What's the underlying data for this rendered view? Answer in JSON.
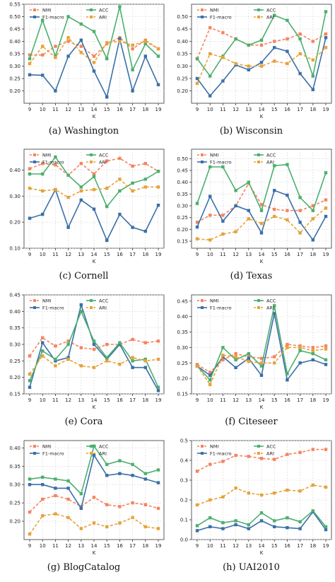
{
  "legend_labels": {
    "nmi": "NMI",
    "f1": "F1-macro",
    "acc": "ACC",
    "ari": "ARI"
  },
  "series_colors": {
    "nmi": "#f4845f",
    "f1": "#3a6fa8",
    "acc": "#4caf6e",
    "ari": "#e5a33a"
  },
  "chart_data": [
    {
      "type": "line",
      "caption": "(a)  Washington",
      "xlabel": "K",
      "ylabel": "",
      "x": [
        9,
        10,
        11,
        12,
        13,
        14,
        15,
        16,
        17,
        18,
        19
      ],
      "ylim": [
        0.15,
        0.55
      ],
      "yticks": [
        0.2,
        0.25,
        0.3,
        0.35,
        0.4,
        0.45,
        0.5,
        0.55
      ],
      "grid": true,
      "legend": "top",
      "series": [
        {
          "name": "NMI",
          "values": [
            0.345,
            0.345,
            0.38,
            0.4,
            0.38,
            0.34,
            0.39,
            0.415,
            0.37,
            0.405,
            0.37
          ]
        },
        {
          "name": "F1-macro",
          "values": [
            0.265,
            0.263,
            0.2,
            0.34,
            0.405,
            0.28,
            0.175,
            0.41,
            0.2,
            0.34,
            0.225
          ]
        },
        {
          "name": "ACC",
          "values": [
            0.33,
            0.485,
            0.34,
            0.5,
            0.47,
            0.44,
            0.33,
            0.54,
            0.285,
            0.39,
            0.34
          ]
        },
        {
          "name": "ARI",
          "values": [
            0.31,
            0.38,
            0.335,
            0.415,
            0.355,
            0.315,
            0.395,
            0.4,
            0.385,
            0.4,
            0.37
          ]
        }
      ]
    },
    {
      "type": "line",
      "caption": "(b)  Wisconsin",
      "xlabel": "K",
      "ylabel": "",
      "x": [
        9,
        10,
        11,
        12,
        13,
        14,
        15,
        16,
        17,
        18,
        19
      ],
      "ylim": [
        0.15,
        0.55
      ],
      "yticks": [
        0.2,
        0.25,
        0.3,
        0.35,
        0.4,
        0.45,
        0.5
      ],
      "grid": true,
      "legend": "top",
      "series": [
        {
          "name": "NMI",
          "values": [
            0.33,
            0.455,
            0.435,
            0.41,
            0.385,
            0.385,
            0.4,
            0.41,
            0.43,
            0.4,
            0.43
          ]
        },
        {
          "name": "F1-macro",
          "values": [
            0.25,
            0.18,
            0.24,
            0.305,
            0.285,
            0.315,
            0.375,
            0.36,
            0.27,
            0.205,
            0.415
          ]
        },
        {
          "name": "ACC",
          "values": [
            0.33,
            0.26,
            0.34,
            0.41,
            0.385,
            0.405,
            0.505,
            0.485,
            0.41,
            0.26,
            0.52
          ]
        },
        {
          "name": "ARI",
          "values": [
            0.23,
            0.35,
            0.335,
            0.31,
            0.3,
            0.3,
            0.32,
            0.31,
            0.35,
            0.325,
            0.375
          ]
        }
      ]
    },
    {
      "type": "line",
      "caption": "(c)  Cornell",
      "xlabel": "K",
      "ylabel": "",
      "x": [
        9,
        10,
        11,
        12,
        13,
        14,
        15,
        16,
        17,
        18,
        19
      ],
      "ylim": [
        0.1,
        0.48
      ],
      "yticks": [
        0.1,
        0.2,
        0.3,
        0.4
      ],
      "grid": true,
      "legend": "top",
      "series": [
        {
          "name": "NMI",
          "values": [
            0.405,
            0.425,
            0.42,
            0.38,
            0.425,
            0.385,
            0.435,
            0.445,
            0.415,
            0.425,
            0.395
          ]
        },
        {
          "name": "F1-macro",
          "values": [
            0.215,
            0.23,
            0.325,
            0.18,
            0.285,
            0.25,
            0.13,
            0.23,
            0.18,
            0.165,
            0.265
          ]
        },
        {
          "name": "ACC",
          "values": [
            0.385,
            0.385,
            0.45,
            0.38,
            0.335,
            0.375,
            0.26,
            0.32,
            0.35,
            0.365,
            0.395
          ]
        },
        {
          "name": "ARI",
          "values": [
            0.33,
            0.32,
            0.325,
            0.295,
            0.32,
            0.325,
            0.33,
            0.365,
            0.32,
            0.335,
            0.335
          ]
        }
      ]
    },
    {
      "type": "line",
      "caption": "(d)  Texas",
      "xlabel": "K",
      "ylabel": "",
      "x": [
        9,
        10,
        11,
        12,
        13,
        14,
        15,
        16,
        17,
        18,
        19
      ],
      "ylim": [
        0.12,
        0.54
      ],
      "yticks": [
        0.15,
        0.2,
        0.25,
        0.3,
        0.35,
        0.4,
        0.45,
        0.5
      ],
      "grid": true,
      "legend": "top",
      "series": [
        {
          "name": "NMI",
          "values": [
            0.23,
            0.26,
            0.26,
            0.3,
            0.395,
            0.305,
            0.285,
            0.28,
            0.28,
            0.3,
            0.325
          ]
        },
        {
          "name": "F1-macro",
          "values": [
            0.21,
            0.34,
            0.235,
            0.3,
            0.28,
            0.185,
            0.365,
            0.345,
            0.23,
            0.155,
            0.255
          ]
        },
        {
          "name": "ACC",
          "values": [
            0.31,
            0.465,
            0.465,
            0.365,
            0.4,
            0.28,
            0.47,
            0.475,
            0.335,
            0.28,
            0.44
          ]
        },
        {
          "name": "ARI",
          "values": [
            0.16,
            0.155,
            0.18,
            0.19,
            0.245,
            0.225,
            0.255,
            0.24,
            0.185,
            0.245,
            0.29
          ]
        }
      ]
    },
    {
      "type": "line",
      "caption": "(e)  Cora",
      "xlabel": "K",
      "ylabel": "",
      "x": [
        9,
        10,
        11,
        12,
        13,
        14,
        15,
        16,
        17,
        18,
        19
      ],
      "ylim": [
        0.15,
        0.45
      ],
      "yticks": [
        0.15,
        0.2,
        0.25,
        0.3,
        0.35,
        0.4,
        0.45
      ],
      "grid": true,
      "legend": "top",
      "series": [
        {
          "name": "NMI",
          "values": [
            0.265,
            0.32,
            0.295,
            0.31,
            0.29,
            0.285,
            0.3,
            0.3,
            0.315,
            0.305,
            0.31
          ]
        },
        {
          "name": "F1-macro",
          "values": [
            0.17,
            0.305,
            0.25,
            0.26,
            0.42,
            0.3,
            0.255,
            0.3,
            0.23,
            0.23,
            0.16
          ]
        },
        {
          "name": "ACC",
          "values": [
            0.19,
            0.28,
            0.255,
            0.3,
            0.4,
            0.31,
            0.26,
            0.305,
            0.25,
            0.255,
            0.17
          ]
        },
        {
          "name": "ARI",
          "values": [
            0.21,
            0.265,
            0.235,
            0.255,
            0.235,
            0.23,
            0.25,
            0.24,
            0.26,
            0.25,
            0.255
          ]
        }
      ]
    },
    {
      "type": "line",
      "caption": "(f)  Citeseer",
      "xlabel": "K",
      "ylabel": "",
      "x": [
        9,
        10,
        11,
        12,
        13,
        14,
        15,
        16,
        17,
        18,
        19
      ],
      "ylim": [
        0.15,
        0.47
      ],
      "yticks": [
        0.15,
        0.2,
        0.25,
        0.3,
        0.35,
        0.4,
        0.45
      ],
      "grid": true,
      "legend": "top",
      "series": [
        {
          "name": "NMI",
          "values": [
            0.245,
            0.22,
            0.26,
            0.28,
            0.27,
            0.265,
            0.27,
            0.31,
            0.305,
            0.3,
            0.305
          ]
        },
        {
          "name": "F1-macro",
          "values": [
            0.24,
            0.21,
            0.27,
            0.235,
            0.265,
            0.21,
            0.41,
            0.195,
            0.25,
            0.26,
            0.245
          ]
        },
        {
          "name": "ACC",
          "values": [
            0.24,
            0.195,
            0.3,
            0.26,
            0.28,
            0.24,
            0.435,
            0.215,
            0.29,
            0.28,
            0.26
          ]
        },
        {
          "name": "ARI",
          "values": [
            0.24,
            0.18,
            0.275,
            0.27,
            0.255,
            0.25,
            0.25,
            0.3,
            0.3,
            0.29,
            0.295
          ]
        }
      ]
    },
    {
      "type": "line",
      "caption": "(g)  BlogCatalog",
      "xlabel": "K",
      "ylabel": "",
      "x": [
        9,
        10,
        11,
        12,
        13,
        14,
        15,
        16,
        17,
        18,
        19
      ],
      "ylim": [
        0.15,
        0.42
      ],
      "yticks": [
        0.2,
        0.25,
        0.3,
        0.35,
        0.4
      ],
      "grid": true,
      "legend": "top",
      "series": [
        {
          "name": "NMI",
          "values": [
            0.225,
            0.26,
            0.27,
            0.26,
            0.24,
            0.265,
            0.245,
            0.24,
            0.25,
            0.245,
            0.235
          ]
        },
        {
          "name": "F1-macro",
          "values": [
            0.3,
            0.3,
            0.29,
            0.29,
            0.235,
            0.38,
            0.325,
            0.33,
            0.325,
            0.315,
            0.305
          ]
        },
        {
          "name": "ACC",
          "values": [
            0.315,
            0.32,
            0.315,
            0.31,
            0.275,
            0.405,
            0.355,
            0.365,
            0.355,
            0.33,
            0.34
          ]
        },
        {
          "name": "ARI",
          "values": [
            0.165,
            0.215,
            0.22,
            0.21,
            0.18,
            0.195,
            0.185,
            0.195,
            0.21,
            0.185,
            0.18
          ]
        }
      ]
    },
    {
      "type": "line",
      "caption": "(h)  UAI2010",
      "xlabel": "K",
      "ylabel": "",
      "x": [
        9,
        10,
        11,
        12,
        13,
        14,
        15,
        16,
        17,
        18,
        19
      ],
      "ylim": [
        0.0,
        0.5
      ],
      "yticks": [
        0.0,
        0.1,
        0.2,
        0.3,
        0.4,
        0.5
      ],
      "grid": true,
      "legend": "top",
      "series": [
        {
          "name": "NMI",
          "values": [
            0.345,
            0.38,
            0.395,
            0.425,
            0.42,
            0.41,
            0.405,
            0.43,
            0.44,
            0.455,
            0.455
          ]
        },
        {
          "name": "F1-macro",
          "values": [
            0.045,
            0.065,
            0.055,
            0.075,
            0.055,
            0.095,
            0.065,
            0.06,
            0.055,
            0.14,
            0.05
          ]
        },
        {
          "name": "ACC",
          "values": [
            0.07,
            0.11,
            0.085,
            0.095,
            0.075,
            0.135,
            0.095,
            0.11,
            0.09,
            0.145,
            0.065
          ]
        },
        {
          "name": "ARI",
          "values": [
            0.175,
            0.2,
            0.215,
            0.26,
            0.235,
            0.225,
            0.235,
            0.25,
            0.245,
            0.275,
            0.265
          ]
        }
      ]
    }
  ]
}
